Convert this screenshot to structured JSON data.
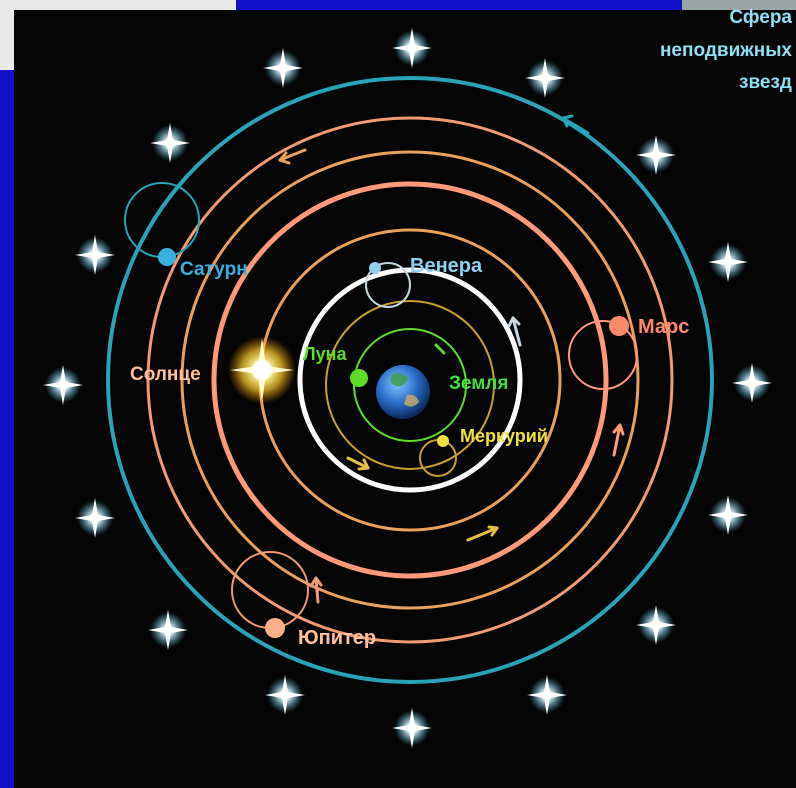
{
  "title": {
    "line1": "Сфера",
    "line2": "неподвижных",
    "line3": "звезд"
  },
  "bodies": {
    "saturn": "Сатурн",
    "venus": "Венера",
    "mars": "Марс",
    "sun": "Солнце",
    "moon": "Луна",
    "earth": "Земля",
    "mercury": "Меркурий",
    "jupiter": "Юпитер"
  },
  "colors": {
    "background": "#050505",
    "sphere_of_stars": "#2aa3b8",
    "orbit_outer": "#ff9a7a",
    "orbit_mid": "#e8a05a",
    "orbit_inner": "#ffffff",
    "saturn": "#3ab0e0",
    "venus": "#8fd0f0",
    "mars": "#ff8a6a",
    "moon": "#5edc2a",
    "earth_label": "#40e040",
    "mercury": "#f0e040",
    "jupiter": "#ffb08a",
    "star": "#ffffff"
  }
}
